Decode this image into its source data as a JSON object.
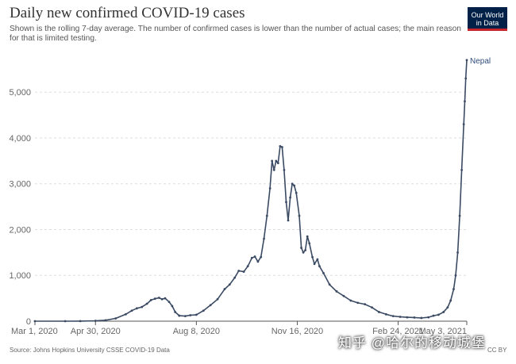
{
  "title": "Daily new confirmed COVID-19 cases",
  "subtitle": "Shown is the rolling 7-day average. The number of confirmed cases is lower than the number of actual cases; the main reason for that is limited testing.",
  "logo": {
    "line1": "Our World",
    "line2": "in Data"
  },
  "source": "Source: Johns Hopkins University CSSE COVID-19 Data",
  "license": "CC BY",
  "watermark": "知乎 @哈尔的移动城堡",
  "colors": {
    "series": "#3b4a63",
    "grid": "#dddddd",
    "axis": "#555555"
  },
  "chart_data": {
    "type": "line",
    "title": "Daily new confirmed COVID-19 cases",
    "xlabel": "",
    "ylabel": "",
    "ylim": [
      0,
      5800
    ],
    "xlim": [
      "2020-03-01",
      "2021-05-03"
    ],
    "grid": "horizontal dashed",
    "y_ticks": [
      {
        "value": 0,
        "label": "0"
      },
      {
        "value": 1000,
        "label": "1,000"
      },
      {
        "value": 2000,
        "label": "2,000"
      },
      {
        "value": 3000,
        "label": "3,000"
      },
      {
        "value": 4000,
        "label": "4,000"
      },
      {
        "value": 5000,
        "label": "5,000"
      }
    ],
    "x_ticks": [
      {
        "date": "2020-03-01",
        "label": "Mar 1, 2020"
      },
      {
        "date": "2020-04-30",
        "label": "Apr 30, 2020"
      },
      {
        "date": "2020-08-08",
        "label": "Aug 8, 2020"
      },
      {
        "date": "2020-11-16",
        "label": "Nov 16, 2020"
      },
      {
        "date": "2021-02-24",
        "label": "Feb 24, 2021"
      },
      {
        "date": "2021-05-03",
        "label": "May 3, 2021"
      }
    ],
    "series": [
      {
        "name": "Nepal",
        "points": [
          [
            "2020-03-01",
            0
          ],
          [
            "2020-03-31",
            0
          ],
          [
            "2020-04-15",
            2
          ],
          [
            "2020-04-30",
            8
          ],
          [
            "2020-05-10",
            20
          ],
          [
            "2020-05-20",
            60
          ],
          [
            "2020-05-30",
            150
          ],
          [
            "2020-06-05",
            230
          ],
          [
            "2020-06-10",
            280
          ],
          [
            "2020-06-15",
            310
          ],
          [
            "2020-06-20",
            380
          ],
          [
            "2020-06-24",
            460
          ],
          [
            "2020-06-28",
            490
          ],
          [
            "2020-07-02",
            510
          ],
          [
            "2020-07-05",
            480
          ],
          [
            "2020-07-08",
            500
          ],
          [
            "2020-07-12",
            420
          ],
          [
            "2020-07-15",
            330
          ],
          [
            "2020-07-18",
            200
          ],
          [
            "2020-07-22",
            120
          ],
          [
            "2020-07-28",
            110
          ],
          [
            "2020-08-02",
            130
          ],
          [
            "2020-08-08",
            140
          ],
          [
            "2020-08-15",
            230
          ],
          [
            "2020-08-22",
            350
          ],
          [
            "2020-08-29",
            480
          ],
          [
            "2020-09-05",
            700
          ],
          [
            "2020-09-10",
            800
          ],
          [
            "2020-09-15",
            950
          ],
          [
            "2020-09-19",
            1100
          ],
          [
            "2020-09-24",
            1080
          ],
          [
            "2020-09-28",
            1200
          ],
          [
            "2020-10-02",
            1380
          ],
          [
            "2020-10-05",
            1410
          ],
          [
            "2020-10-08",
            1300
          ],
          [
            "2020-10-11",
            1400
          ],
          [
            "2020-10-14",
            1800
          ],
          [
            "2020-10-17",
            2300
          ],
          [
            "2020-10-20",
            2900
          ],
          [
            "2020-10-22",
            3500
          ],
          [
            "2020-10-24",
            3300
          ],
          [
            "2020-10-26",
            3500
          ],
          [
            "2020-10-28",
            3450
          ],
          [
            "2020-10-30",
            3820
          ],
          [
            "2020-11-01",
            3800
          ],
          [
            "2020-11-03",
            3300
          ],
          [
            "2020-11-05",
            2600
          ],
          [
            "2020-11-07",
            2200
          ],
          [
            "2020-11-09",
            2700
          ],
          [
            "2020-11-11",
            3000
          ],
          [
            "2020-11-13",
            2960
          ],
          [
            "2020-11-15",
            2800
          ],
          [
            "2020-11-18",
            2300
          ],
          [
            "2020-11-20",
            1600
          ],
          [
            "2020-11-22",
            1500
          ],
          [
            "2020-11-24",
            1550
          ],
          [
            "2020-11-26",
            1850
          ],
          [
            "2020-11-28",
            1700
          ],
          [
            "2020-12-01",
            1400
          ],
          [
            "2020-12-03",
            1250
          ],
          [
            "2020-12-06",
            1350
          ],
          [
            "2020-12-08",
            1200
          ],
          [
            "2020-12-12",
            1050
          ],
          [
            "2020-12-18",
            800
          ],
          [
            "2020-12-25",
            650
          ],
          [
            "2021-01-01",
            550
          ],
          [
            "2021-01-08",
            450
          ],
          [
            "2021-01-15",
            400
          ],
          [
            "2021-01-22",
            370
          ],
          [
            "2021-01-29",
            300
          ],
          [
            "2021-02-05",
            200
          ],
          [
            "2021-02-12",
            150
          ],
          [
            "2021-02-19",
            110
          ],
          [
            "2021-02-26",
            95
          ],
          [
            "2021-03-05",
            85
          ],
          [
            "2021-03-12",
            80
          ],
          [
            "2021-03-19",
            70
          ],
          [
            "2021-03-26",
            85
          ],
          [
            "2021-03-31",
            120
          ],
          [
            "2021-04-05",
            140
          ],
          [
            "2021-04-10",
            200
          ],
          [
            "2021-04-14",
            300
          ],
          [
            "2021-04-17",
            450
          ],
          [
            "2021-04-20",
            700
          ],
          [
            "2021-04-22",
            1000
          ],
          [
            "2021-04-24",
            1500
          ],
          [
            "2021-04-26",
            2300
          ],
          [
            "2021-04-28",
            3300
          ],
          [
            "2021-04-30",
            4300
          ],
          [
            "2021-05-01",
            4800
          ],
          [
            "2021-05-02",
            5300
          ],
          [
            "2021-05-03",
            5700
          ]
        ]
      }
    ]
  }
}
